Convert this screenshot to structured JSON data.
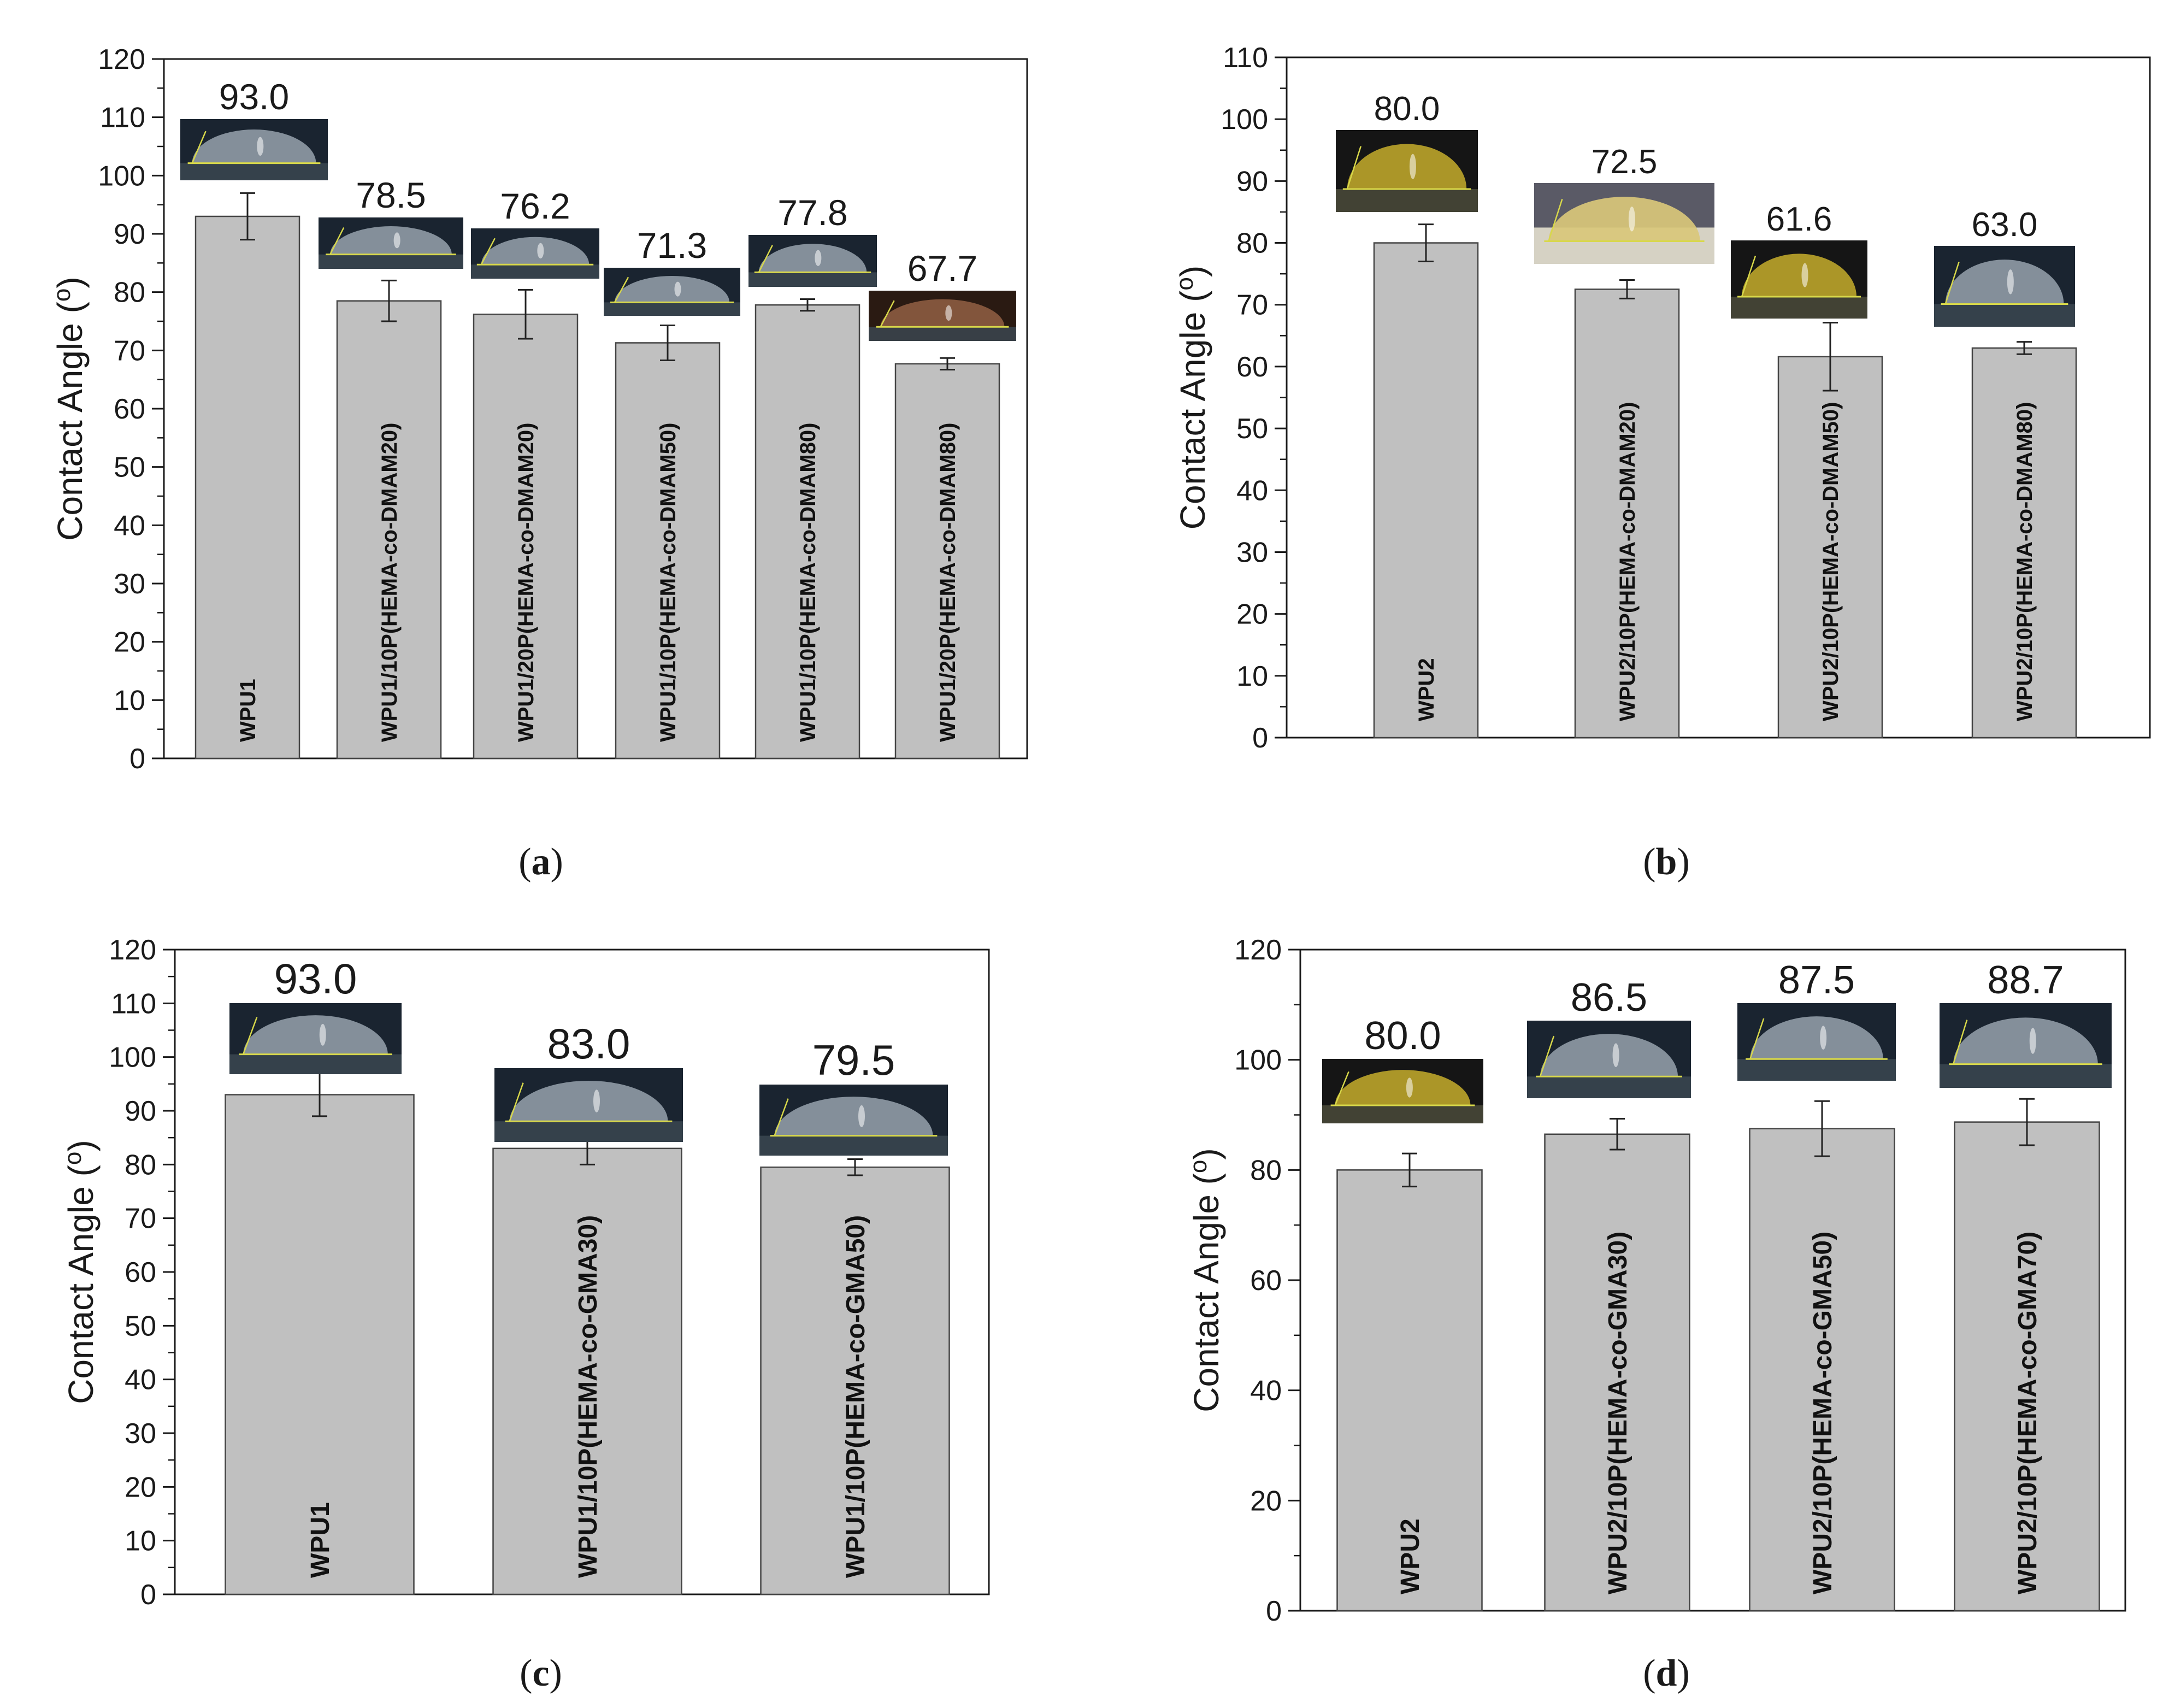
{
  "figure": {
    "ylabel": "Contact Angle",
    "ylabel_unit": "o",
    "bar_color": "#c0c0c0",
    "bar_stroke": "#444444",
    "drop_colors": {
      "clear_bg": "#1a2430",
      "clear_drop": "#8d99a4",
      "yellow_bg": "#151515",
      "yellow_drop": "#b9a22a",
      "amber_drop": "#8a5a40",
      "baseline": "#d8d84a"
    }
  },
  "chart_data": [
    {
      "panel": "(a)",
      "type": "bar",
      "ylabel": "Contact Angle (o)",
      "ylim": [
        0,
        120
      ],
      "ytick_step": 10,
      "categories": [
        "WPU1",
        "WPU1/10P(HEMA-co-DMAM20)",
        "WPU1/20P(HEMA-co-DMAM20)",
        "WPU1/10P(HEMA-co-DMAM50)",
        "WPU1/10P(HEMA-co-DMAM80)",
        "WPU1/20P(HEMA-co-DMAM80)"
      ],
      "values": [
        93.0,
        78.5,
        76.2,
        71.3,
        77.8,
        67.7
      ],
      "value_labels": [
        "93.0",
        "78.5",
        "76.2",
        "71.3",
        "77.8",
        "67.7"
      ],
      "errors": [
        4.0,
        3.5,
        4.2,
        3.0,
        1.0,
        1.0
      ],
      "drop_styles": [
        "clear",
        "clear",
        "clear",
        "clear",
        "clear",
        "amber"
      ]
    },
    {
      "panel": "(b)",
      "type": "bar",
      "ylabel": "Contact Angle (o)",
      "ylim": [
        0,
        110
      ],
      "ytick_step": 10,
      "categories": [
        "WPU2",
        "WPU2/10P(HEMA-co-DMAM20)",
        "WPU2/10P(HEMA-co-DMAM50)",
        "WPU2/10P(HEMA-co-DMAM80)"
      ],
      "values": [
        80.0,
        72.5,
        61.6,
        63.0
      ],
      "value_labels": [
        "80.0",
        "72.5",
        "61.6",
        "63.0"
      ],
      "errors": [
        3.0,
        1.5,
        5.5,
        1.0
      ],
      "drop_styles": [
        "yellow",
        "yellow-light",
        "yellow",
        "clear"
      ]
    },
    {
      "panel": "(c)",
      "type": "bar",
      "ylabel": "Contact Angle (o)",
      "ylim": [
        0,
        120
      ],
      "ytick_step": 10,
      "categories": [
        "WPU1",
        "WPU1/10P(HEMA-co-GMA30)",
        "WPU1/10P(HEMA-co-GMA50)"
      ],
      "values": [
        93.0,
        83.0,
        79.5
      ],
      "value_labels": [
        "93.0",
        "83.0",
        "79.5"
      ],
      "errors": [
        4.0,
        3.0,
        1.5
      ],
      "drop_styles": [
        "clear",
        "clear",
        "clear"
      ]
    },
    {
      "panel": "(d)",
      "type": "bar",
      "ylabel": "Contact Angle (o)",
      "ylim": [
        0,
        120
      ],
      "ytick_step": 20,
      "categories": [
        "WPU2",
        "WPU2/10P(HEMA-co-GMA30)",
        "WPU2/10P(HEMA-co-GMA50)",
        "WPU2/10P(HEMA-co-GMA70)"
      ],
      "values": [
        80.0,
        86.5,
        87.5,
        88.7
      ],
      "value_labels": [
        "80.0",
        "86.5",
        "87.5",
        "88.7"
      ],
      "errors": [
        3.0,
        2.8,
        5.0,
        4.2
      ],
      "drop_styles": [
        "yellow",
        "clear",
        "clear",
        "clear"
      ]
    }
  ]
}
